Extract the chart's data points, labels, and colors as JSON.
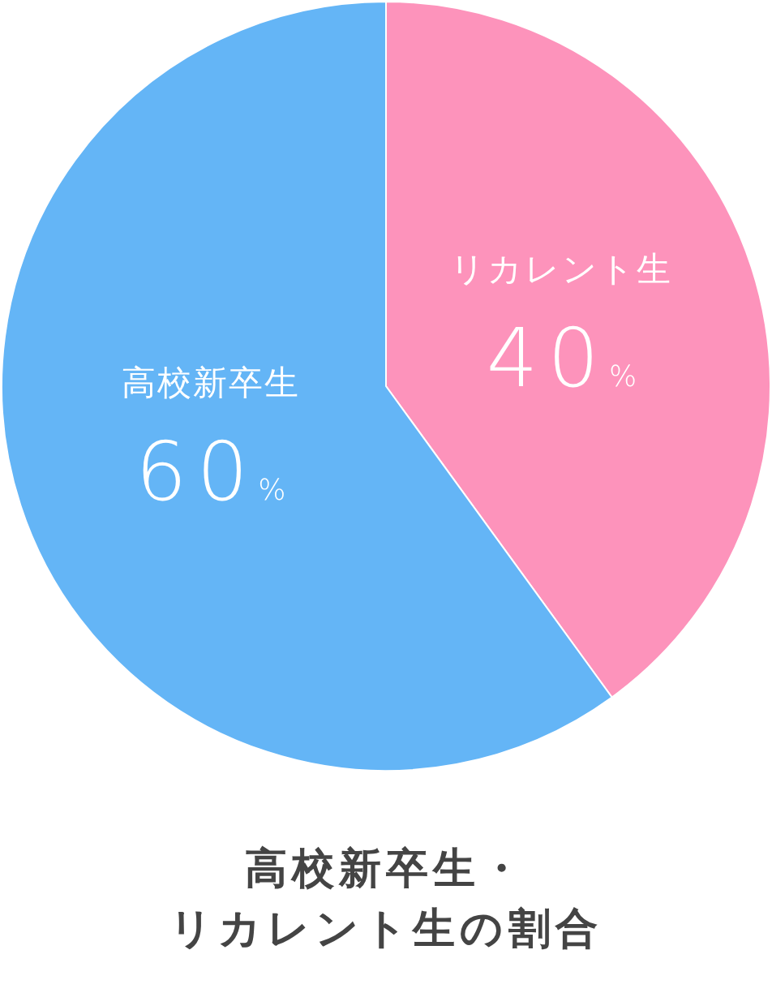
{
  "chart_data": {
    "type": "pie",
    "title": "高校新卒生・リカレント生の割合",
    "categories": [
      "リカレント生",
      "高校新卒生"
    ],
    "values": [
      40,
      60
    ],
    "colors": [
      "#fd93bb",
      "#64b5f6"
    ],
    "value_labels": [
      "40%",
      "60%"
    ]
  }
}
